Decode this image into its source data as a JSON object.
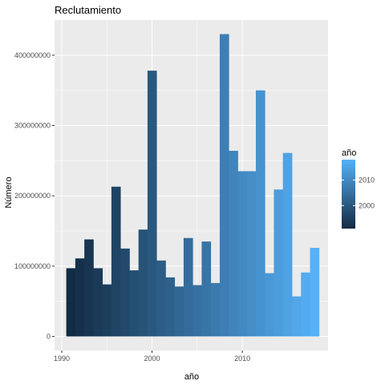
{
  "chart_data": {
    "type": "bar",
    "title": "Reclutamiento",
    "xlabel": "año",
    "ylabel": "Número",
    "x": [
      1991,
      1992,
      1993,
      1994,
      1995,
      1996,
      1997,
      1998,
      1999,
      2000,
      2001,
      2002,
      2003,
      2004,
      2005,
      2006,
      2007,
      2008,
      2009,
      2010,
      2011,
      2012,
      2013,
      2014,
      2015,
      2016,
      2017,
      2018
    ],
    "values": [
      97000000,
      111000000,
      138000000,
      97000000,
      74000000,
      213000000,
      125000000,
      94000000,
      152000000,
      378000000,
      108000000,
      84000000,
      71000000,
      140000000,
      73000000,
      135000000,
      76000000,
      430000000,
      264000000,
      235000000,
      235000000,
      350000000,
      90000000,
      209000000,
      261000000,
      57000000,
      91000000,
      126000000
    ],
    "xlim": [
      1989.2,
      2019.5
    ],
    "ylim": [
      -20000000,
      450000000
    ],
    "x_ticks": [
      1990,
      2000,
      2010
    ],
    "x_tick_labels": [
      "1990",
      "2000",
      "2010"
    ],
    "y_ticks": [
      0,
      100000000,
      200000000,
      300000000,
      400000000
    ],
    "y_tick_labels": [
      "0",
      "100000000",
      "200000000",
      "300000000",
      "400000000"
    ],
    "fill_gradient": {
      "low": "#132B43",
      "high": "#56B1F7",
      "range": [
        1991,
        2018
      ]
    },
    "legend": {
      "title": "año",
      "position": "right",
      "ticks": [
        2000,
        2010
      ],
      "tick_labels": [
        "2000",
        "2010"
      ]
    },
    "grid": true,
    "panel_background": "#EBEBEB",
    "grid_color": "#FFFFFF"
  }
}
